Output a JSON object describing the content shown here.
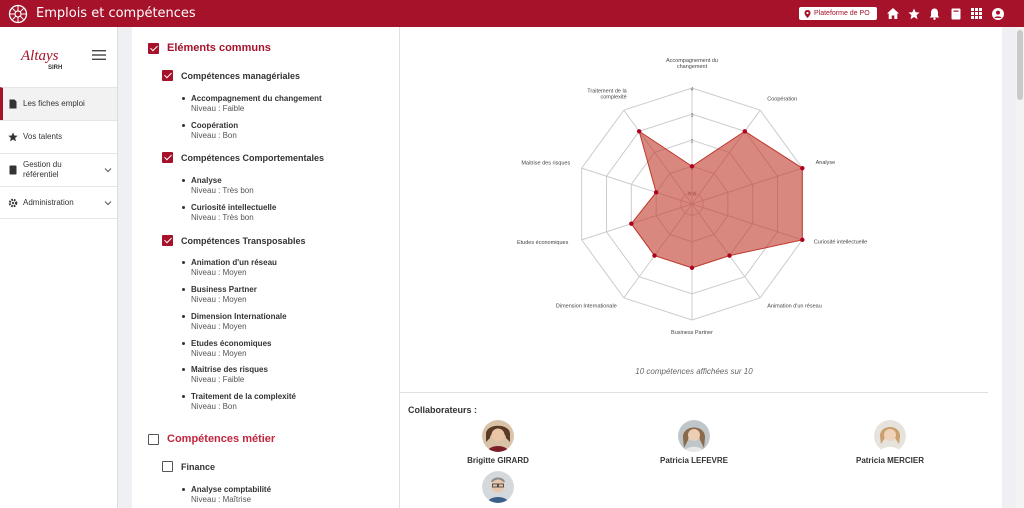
{
  "header": {
    "title": "Emplois et compétences",
    "platform_button": "Plateforme de PO",
    "icons": [
      "home-icon",
      "star-icon",
      "bell-icon",
      "book-icon",
      "apps-grid-icon",
      "user-icon"
    ]
  },
  "brand": {
    "logo_text": "Altays",
    "logo_sub": "SIRH"
  },
  "sidebar": {
    "items": [
      {
        "label": "Les fiches emploi",
        "icon": "document-icon",
        "active": true
      },
      {
        "label": "Vos talents",
        "icon": "star-icon"
      },
      {
        "label": "Gestion du référentiel",
        "icon": "book-icon",
        "expandable": true
      },
      {
        "label": "Administration",
        "icon": "gear-icon",
        "expandable": true
      }
    ]
  },
  "competences": {
    "common": {
      "title": "Eléments communs",
      "checked": true,
      "groups": [
        {
          "title": "Compétences managériales",
          "items": [
            {
              "name": "Accompagnement du changement",
              "level": "Niveau : Faible"
            },
            {
              "name": "Coopération",
              "level": "Niveau : Bon"
            }
          ]
        },
        {
          "title": "Compétences Comportementales",
          "items": [
            {
              "name": "Analyse",
              "level": "Niveau : Très bon"
            },
            {
              "name": "Curiosité intellectuelle",
              "level": "Niveau : Très bon"
            }
          ]
        },
        {
          "title": "Compétences Transposables",
          "items": [
            {
              "name": "Animation d'un réseau",
              "level": "Niveau : Moyen"
            },
            {
              "name": "Business Partner",
              "level": "Niveau : Moyen"
            },
            {
              "name": "Dimension Internationale",
              "level": "Niveau : Moyen"
            },
            {
              "name": "Etudes économiques",
              "level": "Niveau : Moyen"
            },
            {
              "name": "Maitrise des risques",
              "level": "Niveau : Faible"
            },
            {
              "name": "Traitement de la complexité",
              "level": "Niveau : Bon"
            }
          ]
        }
      ]
    },
    "metier": {
      "title": "Compétences métier",
      "checked": false,
      "groups": [
        {
          "title": "Finance",
          "items": [
            {
              "name": "Analyse comptabilité",
              "level": "Niveau : Maîtrise"
            }
          ]
        }
      ]
    }
  },
  "chart_data": {
    "type": "radar",
    "axes": [
      "Accompagnement du changement",
      "Coopération",
      "Analyse",
      "Curiosité intellectuelle",
      "Animation d'un réseau",
      "Business Partner",
      "Dimension Internationale",
      "Etudes économiques",
      "Maitrise des risques",
      "Traitement de la complexité"
    ],
    "values": [
      1,
      3,
      4,
      4,
      2,
      2,
      2,
      2,
      1,
      3
    ],
    "scale_labels": [
      "N.A",
      "1",
      "2",
      "3",
      "4"
    ],
    "range": [
      0,
      4
    ],
    "colors": {
      "fill": "#c0392b",
      "point": "#b00020",
      "grid": "#cccccc"
    }
  },
  "chart_caption": "10 compétences affichées sur 10",
  "collaborators": {
    "title": "Collaborateurs :",
    "people": [
      {
        "name": "Brigitte GIRARD"
      },
      {
        "name": "Patricia LEFEVRE"
      },
      {
        "name": "Patricia MERCIER"
      },
      {
        "name": ""
      }
    ]
  },
  "colors": {
    "brand": "#a51229",
    "background": "#eef0f3"
  }
}
